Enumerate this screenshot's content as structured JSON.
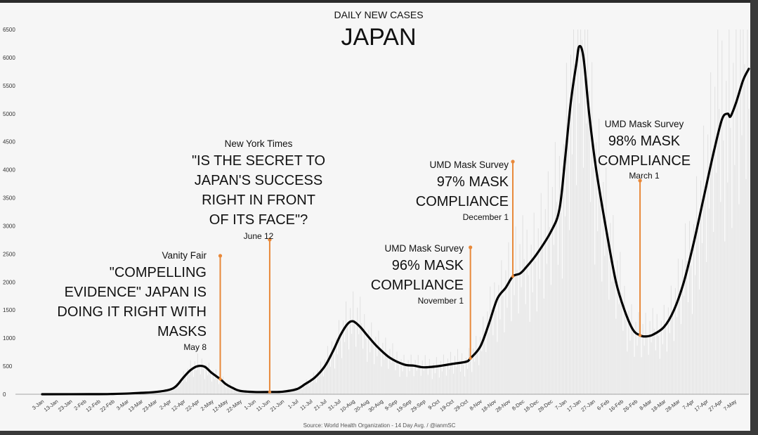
{
  "chart_data": {
    "type": "line",
    "subtitle": "DAILY NEW CASES",
    "title": "JAPAN",
    "source": "Source: World Health Organization - 14 Day Avg. / @ianmSC",
    "ylim": [
      0,
      6500
    ],
    "yticks": [
      0,
      500,
      1000,
      1500,
      2000,
      2500,
      3000,
      3500,
      4000,
      4500,
      5000,
      5500,
      6000,
      6500
    ],
    "xlim": [
      "2020-01-03",
      "2021-05-17"
    ],
    "xtick_dates": [
      "2020-01-03",
      "2020-01-13",
      "2020-01-23",
      "2020-02-02",
      "2020-02-12",
      "2020-02-22",
      "2020-03-03",
      "2020-03-13",
      "2020-03-23",
      "2020-04-02",
      "2020-04-12",
      "2020-04-22",
      "2020-05-02",
      "2020-05-12",
      "2020-05-22",
      "2020-06-01",
      "2020-06-11",
      "2020-06-21",
      "2020-07-01",
      "2020-07-11",
      "2020-07-21",
      "2020-07-31",
      "2020-08-10",
      "2020-08-20",
      "2020-08-30",
      "2020-09-09",
      "2020-09-19",
      "2020-09-29",
      "2020-10-09",
      "2020-10-19",
      "2020-10-29",
      "2020-11-08",
      "2020-11-18",
      "2020-11-28",
      "2020-12-08",
      "2020-12-18",
      "2020-12-28",
      "2021-01-07",
      "2021-01-17",
      "2021-01-27",
      "2021-02-06",
      "2021-02-16",
      "2021-02-26",
      "2021-03-08",
      "2021-03-18",
      "2021-03-28",
      "2021-04-07",
      "2021-04-17",
      "2021-04-27",
      "2021-05-07"
    ],
    "xtick_labels": [
      "3-Jan",
      "13-Jan",
      "23-Jan",
      "2-Feb",
      "12-Feb",
      "22-Feb",
      "3-Mar",
      "13-Mar",
      "23-Mar",
      "2-Apr",
      "12-Apr",
      "22-Apr",
      "2-May",
      "12-May",
      "22-May",
      "1-Jun",
      "11-Jun",
      "21-Jun",
      "1-Jul",
      "11-Jul",
      "21-Jul",
      "31-Jul",
      "10-Aug",
      "20-Aug",
      "30-Aug",
      "9-Sep",
      "19-Sep",
      "29-Sep",
      "9-Oct",
      "19-Oct",
      "29-Oct",
      "8-Nov",
      "18-Nov",
      "28-Nov",
      "8-Dec",
      "18-Dec",
      "28-Dec",
      "7-Jan",
      "17-Jan",
      "27-Jan",
      "6-Feb",
      "16-Feb",
      "26-Feb",
      "8-Mar",
      "18-Mar",
      "28-Mar",
      "7-Apr",
      "17-Apr",
      "27-Apr",
      "7-May"
    ],
    "series": [
      {
        "name": "",
        "color": "#000000",
        "points": [
          [
            "2020-01-03",
            0
          ],
          [
            "2020-02-12",
            2
          ],
          [
            "2020-02-22",
            5
          ],
          [
            "2020-03-03",
            12
          ],
          [
            "2020-03-13",
            25
          ],
          [
            "2020-03-23",
            40
          ],
          [
            "2020-04-02",
            80
          ],
          [
            "2020-04-07",
            150
          ],
          [
            "2020-04-12",
            300
          ],
          [
            "2020-04-17",
            430
          ],
          [
            "2020-04-22",
            500
          ],
          [
            "2020-04-27",
            490
          ],
          [
            "2020-05-02",
            380
          ],
          [
            "2020-05-08",
            270
          ],
          [
            "2020-05-12",
            180
          ],
          [
            "2020-05-17",
            110
          ],
          [
            "2020-05-22",
            60
          ],
          [
            "2020-06-01",
            40
          ],
          [
            "2020-06-12",
            40
          ],
          [
            "2020-06-21",
            45
          ],
          [
            "2020-07-01",
            90
          ],
          [
            "2020-07-07",
            180
          ],
          [
            "2020-07-14",
            300
          ],
          [
            "2020-07-21",
            500
          ],
          [
            "2020-07-27",
            780
          ],
          [
            "2020-08-01",
            1050
          ],
          [
            "2020-08-06",
            1250
          ],
          [
            "2020-08-10",
            1300
          ],
          [
            "2020-08-15",
            1200
          ],
          [
            "2020-08-20",
            1050
          ],
          [
            "2020-08-27",
            850
          ],
          [
            "2020-09-05",
            650
          ],
          [
            "2020-09-15",
            530
          ],
          [
            "2020-09-22",
            510
          ],
          [
            "2020-09-29",
            480
          ],
          [
            "2020-10-09",
            500
          ],
          [
            "2020-10-19",
            540
          ],
          [
            "2020-10-29",
            580
          ],
          [
            "2020-11-01",
            640
          ],
          [
            "2020-11-08",
            850
          ],
          [
            "2020-11-14",
            1250
          ],
          [
            "2020-11-20",
            1700
          ],
          [
            "2020-11-26",
            1900
          ],
          [
            "2020-12-01",
            2100
          ],
          [
            "2020-12-06",
            2150
          ],
          [
            "2020-12-10",
            2250
          ],
          [
            "2020-12-18",
            2500
          ],
          [
            "2020-12-28",
            2900
          ],
          [
            "2021-01-03",
            3300
          ],
          [
            "2021-01-07",
            4200
          ],
          [
            "2021-01-11",
            5200
          ],
          [
            "2021-01-15",
            5900
          ],
          [
            "2021-01-17",
            6200
          ],
          [
            "2021-01-20",
            6000
          ],
          [
            "2021-01-24",
            5000
          ],
          [
            "2021-01-29",
            4000
          ],
          [
            "2021-02-06",
            2800
          ],
          [
            "2021-02-12",
            2000
          ],
          [
            "2021-02-18",
            1500
          ],
          [
            "2021-02-24",
            1150
          ],
          [
            "2021-03-01",
            1050
          ],
          [
            "2021-03-05",
            1030
          ],
          [
            "2021-03-10",
            1060
          ],
          [
            "2021-03-18",
            1200
          ],
          [
            "2021-03-25",
            1500
          ],
          [
            "2021-04-01",
            2000
          ],
          [
            "2021-04-08",
            2700
          ],
          [
            "2021-04-15",
            3500
          ],
          [
            "2021-04-22",
            4300
          ],
          [
            "2021-04-28",
            4900
          ],
          [
            "2021-05-02",
            5000
          ],
          [
            "2021-05-04",
            4950
          ],
          [
            "2021-05-08",
            5200
          ],
          [
            "2021-05-13",
            5600
          ],
          [
            "2021-05-17",
            5800
          ]
        ]
      }
    ],
    "annotations": [
      {
        "source": "Vanity Fair",
        "lines": [
          "\"COMPELLING",
          "EVIDENCE\" JAPAN IS",
          "DOING IT RIGHT WITH",
          "MASKS"
        ],
        "date_label": "May 8",
        "date": "2020-05-08",
        "color": "#e8893a"
      },
      {
        "source": "New York Times",
        "lines": [
          "\"IS THE SECRET TO",
          "JAPAN'S SUCCESS",
          "RIGHT IN FRONT",
          "OF ITS FACE\"?"
        ],
        "date_label": "June 12",
        "date": "2020-06-12",
        "color": "#e8893a"
      },
      {
        "source": "UMD Mask Survey",
        "lines": [
          "96% MASK",
          "COMPLIANCE"
        ],
        "date_label": "November 1",
        "date": "2020-11-01",
        "color": "#e8893a"
      },
      {
        "source": "UMD Mask Survey",
        "lines": [
          "97% MASK",
          "COMPLIANCE"
        ],
        "date_label": "December 1",
        "date": "2020-12-01",
        "color": "#e8893a"
      },
      {
        "source": "UMD Mask Survey",
        "lines": [
          "98% MASK",
          "COMPLIANCE"
        ],
        "date_label": "March 1",
        "date": "2021-03-01",
        "color": "#e8893a"
      }
    ]
  }
}
